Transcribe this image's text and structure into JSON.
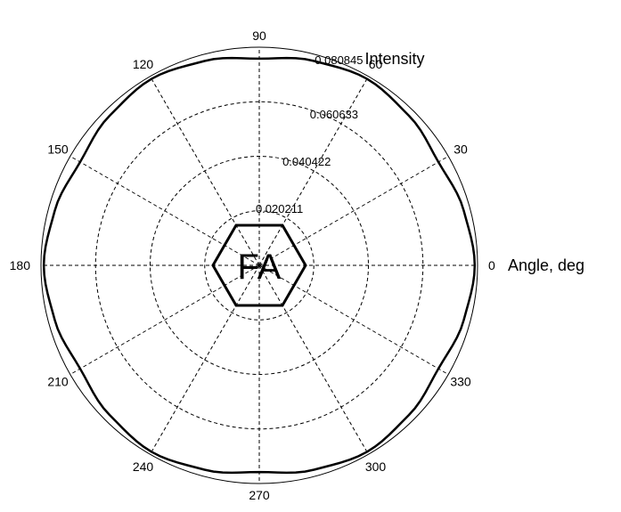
{
  "chart_data": {
    "type": "polar-line",
    "angle_label": "Angle, deg",
    "radial_label": "Intensity",
    "angle_ticks": [
      "0",
      "30",
      "60",
      "90",
      "120",
      "150",
      "180",
      "210",
      "240",
      "270",
      "300",
      "330"
    ],
    "radial_ticks": [
      "0.020211",
      "0.040422",
      "0.060633",
      "0.080845"
    ],
    "radial_tick_values": [
      0.020211,
      0.040422,
      0.060633,
      0.080845
    ],
    "rmax": 0.080845,
    "grid": true,
    "center_label": "FA",
    "series": [
      {
        "angles_deg": [
          0,
          15,
          30,
          45,
          60,
          75,
          90,
          105,
          120,
          135,
          150,
          165,
          180,
          195,
          210,
          225,
          240,
          255,
          270,
          285,
          300,
          315,
          330,
          345,
          360
        ],
        "values": [
          0.0798,
          0.0784,
          0.0766,
          0.0784,
          0.0798,
          0.0784,
          0.0766,
          0.0784,
          0.0798,
          0.0784,
          0.0766,
          0.0784,
          0.0798,
          0.0784,
          0.0766,
          0.0784,
          0.0798,
          0.0784,
          0.0766,
          0.0784,
          0.0798,
          0.0784,
          0.0766,
          0.0784,
          0.0798
        ]
      }
    ]
  }
}
